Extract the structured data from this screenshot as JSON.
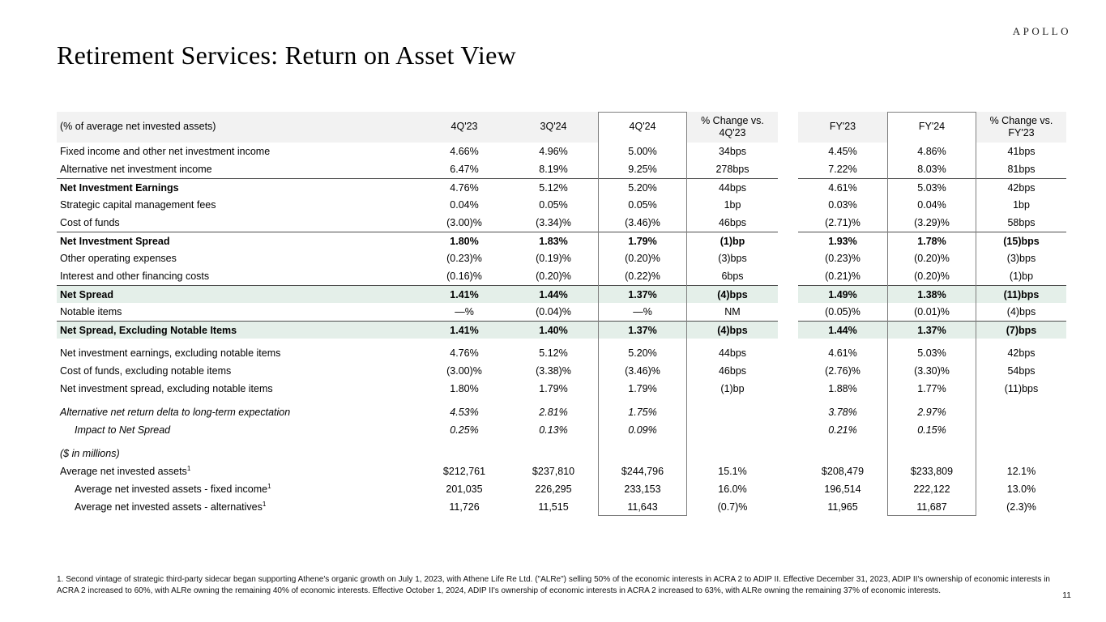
{
  "logo": "APOLLO",
  "title": "Retirement Services: Return on Asset View",
  "page_number": "11",
  "footnote": "1. Second vintage of strategic third-party sidecar began supporting Athene's organic growth on July 1, 2023, with Athene Life Re Ltd. (\"ALRe\") selling 50% of the economic interests in ACRA 2 to ADIP II. Effective December 31, 2023, ADIP II's ownership of economic interests in ACRA 2 increased to 60%, with ALRe owning the remaining 40% of economic interests. Effective October 1, 2024, ADIP II's ownership of economic interests in ACRA 2 increased to 63%, with ALRe owning the remaining 37% of economic interests.",
  "colors": {
    "header_background": "#f2f2f2",
    "highlight_green": "#e4efe9",
    "rule_line": "#4d4d4d",
    "column_box_border": "#7f7f7f"
  },
  "table": {
    "header": [
      "(% of average net invested assets)",
      "4Q'23",
      "3Q'24",
      "4Q'24",
      "% Change vs. 4Q'23",
      "FY'23",
      "FY'24",
      "% Change vs. FY'23"
    ],
    "rows": [
      {
        "label": "Fixed income and other net investment income",
        "values": [
          "4.66%",
          "4.96%",
          "5.00%",
          "34bps",
          "4.45%",
          "4.86%",
          "41bps"
        ]
      },
      {
        "label": "Alternative net investment income",
        "values": [
          "6.47%",
          "8.19%",
          "9.25%",
          "278bps",
          "7.22%",
          "8.03%",
          "81bps"
        ]
      },
      {
        "label": "Net Investment Earnings",
        "bold_label": true,
        "rule": true,
        "values": [
          "4.76%",
          "5.12%",
          "5.20%",
          "44bps",
          "4.61%",
          "5.03%",
          "42bps"
        ]
      },
      {
        "label": "Strategic capital management fees",
        "values": [
          "0.04%",
          "0.05%",
          "0.05%",
          "1bp",
          "0.03%",
          "0.04%",
          "1bp"
        ]
      },
      {
        "label": "Cost of funds",
        "values": [
          "(3.00)%",
          "(3.34)%",
          "(3.46)%",
          "46bps",
          "(2.71)%",
          "(3.29)%",
          "58bps"
        ]
      },
      {
        "label": "Net Investment Spread",
        "bold": true,
        "rule": true,
        "values": [
          "1.80%",
          "1.83%",
          "1.79%",
          "(1)bp",
          "1.93%",
          "1.78%",
          "(15)bps"
        ]
      },
      {
        "label": "Other operating expenses",
        "values": [
          "(0.23)%",
          "(0.19)%",
          "(0.20)%",
          "(3)bps",
          "(0.23)%",
          "(0.20)%",
          "(3)bps"
        ]
      },
      {
        "label": "Interest and other financing costs",
        "values": [
          "(0.16)%",
          "(0.20)%",
          "(0.22)%",
          "6bps",
          "(0.21)%",
          "(0.20)%",
          "(1)bp"
        ]
      },
      {
        "label": "Net Spread",
        "bold": true,
        "green": true,
        "rule": true,
        "values": [
          "1.41%",
          "1.44%",
          "1.37%",
          "(4)bps",
          "1.49%",
          "1.38%",
          "(11)bps"
        ]
      },
      {
        "label": "Notable items",
        "values": [
          "—%",
          "(0.04)%",
          "—%",
          "NM",
          "(0.05)%",
          "(0.01)%",
          "(4)bps"
        ]
      },
      {
        "label": "Net Spread, Excluding Notable Items",
        "bold": true,
        "green": true,
        "rule": true,
        "values": [
          "1.41%",
          "1.40%",
          "1.37%",
          "(4)bps",
          "1.44%",
          "1.37%",
          "(7)bps"
        ]
      },
      {
        "label": "Net investment earnings, excluding notable items",
        "spacer": true,
        "values": [
          "4.76%",
          "5.12%",
          "5.20%",
          "44bps",
          "4.61%",
          "5.03%",
          "42bps"
        ]
      },
      {
        "label": "Cost of funds, excluding notable items",
        "values": [
          "(3.00)%",
          "(3.38)%",
          "(3.46)%",
          "46bps",
          "(2.76)%",
          "(3.30)%",
          "54bps"
        ]
      },
      {
        "label": "Net investment spread, excluding notable items",
        "values": [
          "1.80%",
          "1.79%",
          "1.79%",
          "(1)bp",
          "1.88%",
          "1.77%",
          "(11)bps"
        ]
      },
      {
        "label": "Alternative net return delta to long-term expectation",
        "italic": true,
        "spacer": true,
        "values": [
          "4.53%",
          "2.81%",
          "1.75%",
          "",
          "3.78%",
          "2.97%",
          ""
        ]
      },
      {
        "label": "Impact to Net Spread",
        "italic": true,
        "indent": true,
        "values": [
          "0.25%",
          "0.13%",
          "0.09%",
          "",
          "0.21%",
          "0.15%",
          ""
        ]
      },
      {
        "label": "($ in millions)",
        "italic": true,
        "spacer": true,
        "values": [
          "",
          "",
          "",
          "",
          "",
          "",
          ""
        ]
      },
      {
        "label": "Average net invested assets",
        "sup": "1",
        "values": [
          "$212,761",
          "$237,810",
          "$244,796",
          "15.1%",
          "$208,479",
          "$233,809",
          "12.1%"
        ]
      },
      {
        "label": "Average net invested assets - fixed income",
        "sup": "1",
        "indent": true,
        "values": [
          "201,035",
          "226,295",
          "233,153",
          "16.0%",
          "196,514",
          "222,122",
          "13.0%"
        ]
      },
      {
        "label": "Average net invested assets - alternatives",
        "sup": "1",
        "indent": true,
        "values": [
          "11,726",
          "11,515",
          "11,643",
          "(0.7)%",
          "11,965",
          "11,687",
          "(2.3)%"
        ]
      }
    ]
  }
}
